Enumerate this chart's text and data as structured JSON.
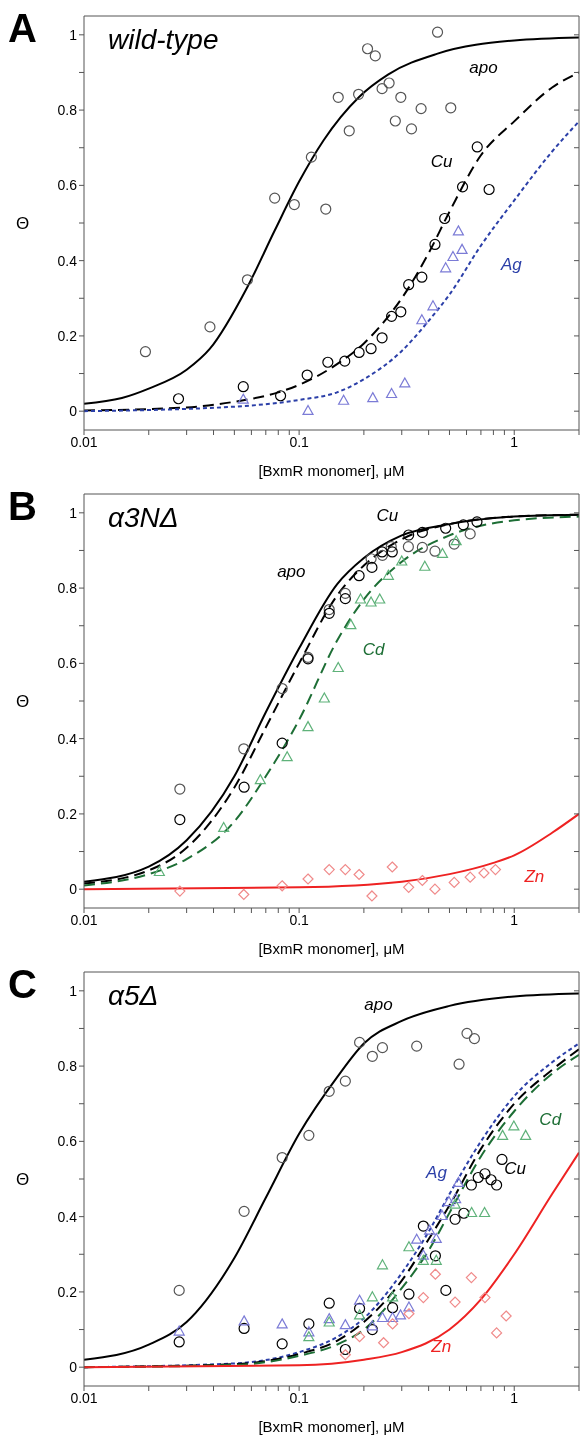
{
  "chart_data": [
    {
      "type": "scatter",
      "title": "A",
      "subtitle": "wild-type",
      "xlabel": "[BxmR monomer], μM",
      "ylabel": "Θ",
      "log": "x",
      "xlim": [
        0.01,
        2
      ],
      "ylim": [
        -0.05,
        1.05
      ],
      "xticks": [
        0.01,
        {
          "value": 0.02,
          "label": null
        },
        {
          "value": 0.03,
          "label": null
        },
        {
          "value": 0.04,
          "label": null
        },
        {
          "value": 0.05,
          "label": null
        },
        {
          "value": 0.06,
          "label": null
        },
        {
          "value": 0.07,
          "label": null
        },
        {
          "value": 0.08,
          "label": null
        },
        {
          "value": 0.09,
          "label": null
        },
        0.1,
        {
          "value": 0.2,
          "label": null
        },
        {
          "value": 0.3,
          "label": null
        },
        {
          "value": 0.4,
          "label": null
        },
        {
          "value": 0.5,
          "label": null
        },
        {
          "value": 0.6,
          "label": null
        },
        {
          "value": 0.7,
          "label": null
        },
        {
          "value": 0.8,
          "label": null
        },
        {
          "value": 0.9,
          "label": null
        },
        1,
        {
          "value": 2,
          "label": null
        }
      ],
      "yticks": [
        0,
        {
          "value": 0.1,
          "label": null
        },
        0.2,
        {
          "value": 0.3,
          "label": null
        },
        0.4,
        {
          "value": 0.5,
          "label": null
        },
        0.6,
        {
          "value": 0.7,
          "label": null
        },
        0.8,
        {
          "value": 0.9,
          "label": null
        },
        1
      ],
      "series": [
        {
          "color": "#555555",
          "marker": "circle",
          "x": [
            0.0193,
            0.0385,
            0.0575,
            0.077,
            0.095,
            0.114,
            0.133,
            0.152,
            0.171,
            0.189,
            0.208,
            0.226,
            0.243,
            0.262,
            0.28,
            0.297,
            0.333,
            0.369,
            0.44,
            0.507
          ],
          "values": [
            0.158,
            0.224,
            0.349,
            0.566,
            0.549,
            0.675,
            0.537,
            0.834,
            0.745,
            0.842,
            0.963,
            0.944,
            0.857,
            0.872,
            0.771,
            0.834,
            0.75,
            0.804,
            1.007,
            0.806
          ]
        },
        {
          "color": "#000000",
          "marker": "circle",
          "x": [
            0.0275,
            0.055,
            0.082,
            0.109,
            0.136,
            0.163,
            0.19,
            0.216,
            0.243,
            0.269,
            0.297,
            0.323,
            0.372,
            0.428,
            0.475,
            0.575,
            0.673,
            0.764
          ],
          "values": [
            0.033,
            0.065,
            0.041,
            0.096,
            0.13,
            0.133,
            0.156,
            0.166,
            0.195,
            0.252,
            0.264,
            0.336,
            0.356,
            0.443,
            0.512,
            0.596,
            0.702,
            0.589
          ]
        },
        {
          "color": "#7b7bd6",
          "marker": "triangle",
          "x": [
            0.055,
            0.11,
            0.161,
            0.22,
            0.269,
            0.31,
            0.372,
            0.419,
            0.48,
            0.519,
            0.572,
            0.55
          ],
          "values": [
            0.032,
            0.002,
            0.029,
            0.036,
            0.047,
            0.075,
            0.243,
            0.28,
            0.381,
            0.411,
            0.43,
            0.479
          ]
        },
        {
          "type": "line",
          "name": "apo",
          "color": "#000000",
          "line_style": "solid",
          "x": [
            0.01,
            0.015,
            0.02,
            0.03,
            0.0385,
            0.0575,
            0.077,
            0.1,
            0.13,
            0.19,
            0.26,
            0.44,
            1,
            2
          ],
          "values": [
            0.02,
            0.035,
            0.06,
            0.11,
            0.166,
            0.33,
            0.48,
            0.61,
            0.72,
            0.835,
            0.895,
            0.95,
            0.985,
            0.993
          ]
        },
        {
          "type": "line",
          "name": "Cu",
          "color": "#000000",
          "line_style": "dashed",
          "x": [
            0.01,
            0.03,
            0.05,
            0.08,
            0.1,
            0.15,
            0.2,
            0.25,
            0.3,
            0.4,
            0.5,
            0.7,
            1,
            1.5,
            2
          ],
          "values": [
            0.002,
            0.01,
            0.025,
            0.05,
            0.07,
            0.125,
            0.18,
            0.24,
            0.3,
            0.42,
            0.53,
            0.68,
            0.77,
            0.86,
            0.9
          ]
        },
        {
          "type": "line",
          "name": "Ag",
          "color": "#2b3fa8",
          "line_style": "dotted",
          "x": [
            0.01,
            0.05,
            0.1,
            0.15,
            0.2,
            0.3,
            0.4,
            0.5,
            0.7,
            1,
            1.5,
            2
          ],
          "values": [
            0,
            0.012,
            0.03,
            0.05,
            0.085,
            0.16,
            0.24,
            0.31,
            0.44,
            0.56,
            0.69,
            0.77
          ]
        }
      ]
    },
    {
      "type": "scatter",
      "title": "B",
      "subtitle": "α3NΔ",
      "xlabel": "[BxmR monomer], μM",
      "ylabel": "Θ",
      "log": "x",
      "xlim": [
        0.01,
        2
      ],
      "ylim": [
        -0.05,
        1.05
      ],
      "xticks": [
        0.01,
        {
          "value": 0.02,
          "label": null
        },
        {
          "value": 0.03,
          "label": null
        },
        {
          "value": 0.04,
          "label": null
        },
        {
          "value": 0.05,
          "label": null
        },
        {
          "value": 0.06,
          "label": null
        },
        {
          "value": 0.07,
          "label": null
        },
        {
          "value": 0.08,
          "label": null
        },
        {
          "value": 0.09,
          "label": null
        },
        0.1,
        {
          "value": 0.2,
          "label": null
        },
        {
          "value": 0.3,
          "label": null
        },
        {
          "value": 0.4,
          "label": null
        },
        {
          "value": 0.5,
          "label": null
        },
        {
          "value": 0.6,
          "label": null
        },
        {
          "value": 0.7,
          "label": null
        },
        {
          "value": 0.8,
          "label": null
        },
        {
          "value": 0.9,
          "label": null
        },
        1,
        {
          "value": 2,
          "label": null
        }
      ],
      "yticks": [
        0,
        {
          "value": 0.1,
          "label": null
        },
        0.2,
        {
          "value": 0.3,
          "label": null
        },
        0.4,
        {
          "value": 0.5,
          "label": null
        },
        0.6,
        {
          "value": 0.7,
          "label": null
        },
        0.8,
        {
          "value": 0.9,
          "label": null
        },
        1
      ],
      "series": [
        {
          "color": "#555555",
          "marker": "circle",
          "x": [
            0.0279,
            0.0553,
            0.0834,
            0.11,
            0.138,
            0.164,
            0.216,
            0.244,
            0.268,
            0.322,
            0.374,
            0.428,
            0.526,
            0.624
          ],
          "values": [
            0.266,
            0.373,
            0.533,
            0.616,
            0.743,
            0.786,
            0.878,
            0.887,
            0.91,
            0.91,
            0.908,
            0.898,
            0.917,
            0.944
          ]
        },
        {
          "color": "#000000",
          "marker": "circle",
          "x": [
            0.0279,
            0.0555,
            0.0834,
            0.11,
            0.138,
            0.164,
            0.19,
            0.218,
            0.243,
            0.271,
            0.323,
            0.374,
            0.48,
            0.58,
            0.671
          ],
          "values": [
            0.185,
            0.271,
            0.388,
            0.612,
            0.733,
            0.772,
            0.833,
            0.855,
            0.896,
            0.896,
            0.941,
            0.948,
            0.959,
            0.968,
            0.976
          ]
        },
        {
          "color": "#5fb27a",
          "marker": "triangle",
          "x": [
            0.0224,
            0.0446,
            0.066,
            0.088,
            0.11,
            0.131,
            0.152,
            0.174,
            0.193,
            0.216,
            0.237,
            0.26,
            0.3,
            0.384,
            0.464,
            0.537
          ],
          "values": [
            0.047,
            0.164,
            0.291,
            0.352,
            0.432,
            0.508,
            0.589,
            0.703,
            0.771,
            0.763,
            0.771,
            0.834,
            0.872,
            0.858,
            0.892,
            0.926
          ]
        },
        {
          "color": "#f08a8a",
          "marker": "diamond",
          "x": [
            0.0279,
            0.0553,
            0.0834,
            0.11,
            0.138,
            0.164,
            0.19,
            0.218,
            0.271,
            0.323,
            0.374,
            0.428,
            0.526,
            0.624,
            0.723,
            0.818
          ],
          "values": [
            -0.005,
            -0.014,
            0.009,
            0.027,
            0.052,
            0.052,
            0.039,
            -0.018,
            0.059,
            0.005,
            0.023,
            0,
            0.018,
            0.032,
            0.043,
            0.052
          ]
        },
        {
          "type": "line",
          "name": "apo",
          "color": "#000000",
          "line_style": "solid",
          "x": [
            0.01,
            0.02,
            0.03,
            0.05,
            0.07,
            0.1,
            0.15,
            0.2,
            0.3,
            0.5,
            1,
            2
          ],
          "values": [
            0.02,
            0.06,
            0.13,
            0.3,
            0.47,
            0.64,
            0.81,
            0.88,
            0.94,
            0.97,
            0.99,
            0.995
          ]
        },
        {
          "type": "line",
          "name": "Cu",
          "color": "#000000",
          "line_style": "dashed",
          "x": [
            0.01,
            0.02,
            0.03,
            0.05,
            0.07,
            0.1,
            0.15,
            0.2,
            0.3,
            0.5,
            1,
            2
          ],
          "values": [
            0.015,
            0.05,
            0.11,
            0.27,
            0.43,
            0.6,
            0.78,
            0.86,
            0.93,
            0.97,
            0.99,
            0.995
          ]
        },
        {
          "type": "line",
          "name": "Cd",
          "color": "#1d6e35",
          "line_style": "dashed",
          "x": [
            0.01,
            0.02,
            0.03,
            0.05,
            0.07,
            0.1,
            0.15,
            0.2,
            0.3,
            0.5,
            1,
            2
          ],
          "values": [
            0.01,
            0.04,
            0.08,
            0.18,
            0.3,
            0.45,
            0.66,
            0.77,
            0.87,
            0.94,
            0.98,
            0.99
          ]
        },
        {
          "type": "line",
          "name": "Zn",
          "color": "#ee2222",
          "line_style": "solid",
          "x": [
            0.01,
            0.1,
            0.3,
            0.5,
            0.8,
            1,
            1.5,
            2
          ],
          "values": [
            0,
            0.005,
            0.02,
            0.04,
            0.07,
            0.09,
            0.15,
            0.2
          ]
        }
      ]
    },
    {
      "type": "scatter",
      "title": "C",
      "subtitle": "α5Δ",
      "xlabel": "[BxmR monomer], μM",
      "ylabel": "Θ",
      "log": "x",
      "xlim": [
        0.01,
        2
      ],
      "ylim": [
        -0.05,
        1.05
      ],
      "xticks": [
        0.01,
        {
          "value": 0.02,
          "label": null
        },
        {
          "value": 0.03,
          "label": null
        },
        {
          "value": 0.04,
          "label": null
        },
        {
          "value": 0.05,
          "label": null
        },
        {
          "value": 0.06,
          "label": null
        },
        {
          "value": 0.07,
          "label": null
        },
        {
          "value": 0.08,
          "label": null
        },
        {
          "value": 0.09,
          "label": null
        },
        0.1,
        {
          "value": 0.2,
          "label": null
        },
        {
          "value": 0.3,
          "label": null
        },
        {
          "value": 0.4,
          "label": null
        },
        {
          "value": 0.5,
          "label": null
        },
        {
          "value": 0.6,
          "label": null
        },
        {
          "value": 0.7,
          "label": null
        },
        {
          "value": 0.8,
          "label": null
        },
        {
          "value": 0.9,
          "label": null
        },
        1,
        {
          "value": 2,
          "label": null
        }
      ],
      "yticks": [
        0,
        {
          "value": 0.1,
          "label": null
        },
        0.2,
        {
          "value": 0.3,
          "label": null
        },
        0.4,
        {
          "value": 0.5,
          "label": null
        },
        0.6,
        {
          "value": 0.7,
          "label": null
        },
        0.8,
        {
          "value": 0.9,
          "label": null
        },
        1
      ],
      "series": [
        {
          "color": "#555555",
          "marker": "circle",
          "x": [
            0.0277,
            0.0555,
            0.0834,
            0.111,
            0.138,
            0.164,
            0.191,
            0.219,
            0.244,
            0.352,
            0.554,
            0.603,
            0.653
          ],
          "values": [
            0.204,
            0.414,
            0.557,
            0.616,
            0.733,
            0.76,
            0.863,
            0.826,
            0.849,
            0.853,
            0.805,
            0.887,
            0.873
          ]
        },
        {
          "color": "#000000",
          "marker": "circle",
          "x": [
            0.0277,
            0.0555,
            0.0834,
            0.111,
            0.138,
            0.164,
            0.191,
            0.219,
            0.272,
            0.324,
            0.378,
            0.43,
            0.481,
            0.531,
            0.583,
            0.632,
            0.68,
            0.731,
            0.78,
            0.828,
            0.877
          ],
          "values": [
            0.067,
            0.103,
            0.062,
            0.115,
            0.17,
            0.047,
            0.156,
            0.1,
            0.158,
            0.194,
            0.375,
            0.296,
            0.204,
            0.393,
            0.409,
            0.484,
            0.504,
            0.514,
            0.498,
            0.484,
            0.552
          ]
        },
        {
          "color": "#7b7bd6",
          "marker": "triangle",
          "x": [
            0.0277,
            0.0555,
            0.0834,
            0.111,
            0.138,
            0.164,
            0.191,
            0.219,
            0.244,
            0.272,
            0.296,
            0.324,
            0.352,
            0.378,
            0.404,
            0.434,
            0.462,
            0.497,
            0.534,
            0.55
          ],
          "values": [
            0.096,
            0.123,
            0.115,
            0.094,
            0.129,
            0.113,
            0.178,
            0.11,
            0.132,
            0.132,
            0.139,
            0.16,
            0.34,
            0.298,
            0.364,
            0.342,
            0.403,
            0.44,
            0.448,
            0.491
          ]
        },
        {
          "color": "#5fb27a",
          "marker": "triangle",
          "x": [
            0.111,
            0.138,
            0.191,
            0.219,
            0.244,
            0.272,
            0.324,
            0.378,
            0.434,
            0.531,
            0.634,
            0.728,
            0.883,
            0.996,
            1.13
          ],
          "values": [
            0.081,
            0.12,
            0.139,
            0.187,
            0.272,
            0.187,
            0.32,
            0.284,
            0.284,
            0.433,
            0.411,
            0.411,
            0.616,
            0.641,
            0.616
          ]
        },
        {
          "color": "#f08a8a",
          "marker": "diamond",
          "x": [
            0.164,
            0.191,
            0.247,
            0.272,
            0.324,
            0.378,
            0.43,
            0.531,
            0.632,
            0.731,
            0.828,
            0.917
          ],
          "values": [
            0.033,
            0.081,
            0.065,
            0.115,
            0.142,
            0.185,
            0.247,
            0.173,
            0.238,
            0.185,
            0.091,
            0.136
          ]
        },
        {
          "type": "line",
          "name": "apo",
          "color": "#000000",
          "line_style": "solid",
          "x": [
            0.01,
            0.02,
            0.03,
            0.05,
            0.07,
            0.1,
            0.15,
            0.2,
            0.3,
            0.5,
            1,
            2
          ],
          "values": [
            0.02,
            0.06,
            0.12,
            0.29,
            0.45,
            0.62,
            0.77,
            0.86,
            0.92,
            0.96,
            0.985,
            0.993
          ]
        },
        {
          "type": "line",
          "name": "Ag",
          "color": "#2b3fa8",
          "line_style": "dotted",
          "x": [
            0.01,
            0.05,
            0.1,
            0.15,
            0.2,
            0.3,
            0.4,
            0.5,
            0.7,
            1,
            1.5,
            2
          ],
          "values": [
            0,
            0.01,
            0.04,
            0.08,
            0.13,
            0.25,
            0.36,
            0.46,
            0.6,
            0.72,
            0.81,
            0.86
          ]
        },
        {
          "type": "line",
          "name": "Cu",
          "color": "#000000",
          "line_style": "dashed",
          "x": [
            0.01,
            0.05,
            0.1,
            0.15,
            0.2,
            0.3,
            0.4,
            0.5,
            0.7,
            1,
            1.5,
            2
          ],
          "values": [
            0,
            0.008,
            0.035,
            0.07,
            0.12,
            0.23,
            0.34,
            0.43,
            0.58,
            0.7,
            0.79,
            0.845
          ]
        },
        {
          "type": "line",
          "name": "Cd",
          "color": "#1d6e35",
          "line_style": "dashed",
          "x": [
            0.01,
            0.05,
            0.1,
            0.15,
            0.2,
            0.3,
            0.4,
            0.5,
            0.7,
            1,
            1.5,
            2
          ],
          "values": [
            0,
            0.006,
            0.03,
            0.06,
            0.1,
            0.21,
            0.31,
            0.41,
            0.56,
            0.68,
            0.78,
            0.83
          ]
        },
        {
          "type": "line",
          "name": "Zn",
          "color": "#ee2222",
          "line_style": "solid",
          "x": [
            0.01,
            0.1,
            0.2,
            0.3,
            0.5,
            0.7,
            1,
            1.5,
            2
          ],
          "values": [
            0,
            0.005,
            0.02,
            0.04,
            0.1,
            0.18,
            0.3,
            0.46,
            0.57
          ]
        }
      ]
    }
  ]
}
